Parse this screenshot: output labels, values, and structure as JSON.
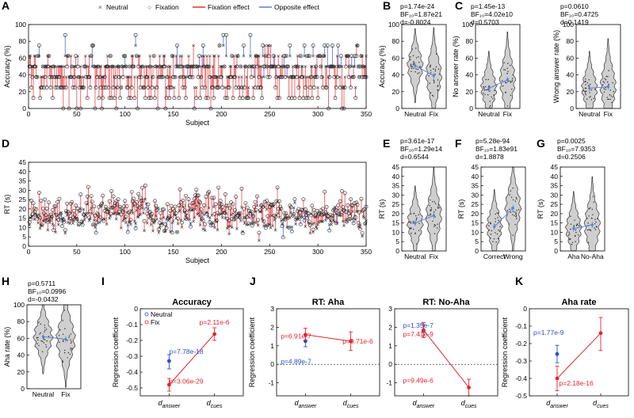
{
  "colors": {
    "neutral": "#555555",
    "fix": "#e8302f",
    "fix_line": "#ef5a5f",
    "opposite": "#5b7fd6",
    "blue": "#2d4ec9",
    "violin_fill": "#cfcfcf",
    "violin_stroke": "#333333",
    "accent_red": "#e0262f",
    "label_blue": "#2d4ec9"
  },
  "panel_letters": [
    "A",
    "B",
    "C",
    "D",
    "E",
    "F",
    "G",
    "H",
    "I",
    "J",
    "K"
  ],
  "panel_a": {
    "legend": [
      "Neutral",
      "Fixation",
      "Fixation effect",
      "Opposite effect"
    ],
    "legend_markers": [
      "×",
      "○"
    ]
  },
  "stats": {
    "B": [
      "p=1.74e-24",
      "BF₁₀=1.87e21",
      "d=-0.8024"
    ],
    "C1": [
      "p=1.45e-13",
      "BF₁₀=4.02e10",
      "d=0.5703"
    ],
    "C2": [
      "p=0.0610",
      "BF₁₀=0.4725",
      "d=0.1419"
    ],
    "E": [
      "p=3.61e-17",
      "BF₁₀=1.29e14",
      "d=0.6544"
    ],
    "F": [
      "p=5.28e-94",
      "BF₁₀=1.83e91",
      "d=1.8878"
    ],
    "G": [
      "p=0.0025",
      "BF₁₀=7.9353",
      "d=0.2506"
    ],
    "H": [
      "p=0.5711",
      "BF₁₀=0.0996",
      "d=-0.0432"
    ]
  },
  "chart_data": [
    {
      "id": "A",
      "type": "scatter",
      "title": "",
      "xlabel": "Subject",
      "ylabel": "Accuracy (%)",
      "xlim": [
        0,
        350
      ],
      "ylim": [
        0,
        100
      ],
      "xticks": [
        0,
        50,
        100,
        150,
        200,
        250,
        300,
        350
      ],
      "yticks": [
        0,
        20,
        40,
        60,
        80,
        100
      ],
      "n_subjects": 350,
      "series": [
        {
          "name": "Neutral"
        },
        {
          "name": "Fixation"
        },
        {
          "name": "Fixation effect"
        },
        {
          "name": "Opposite effect"
        }
      ]
    },
    {
      "id": "D",
      "type": "scatter",
      "title": "",
      "xlabel": "Subject",
      "ylabel": "RT (s)",
      "xlim": [
        0,
        350
      ],
      "ylim": [
        0,
        45
      ],
      "xticks": [
        0,
        50,
        100,
        150,
        200,
        250,
        300,
        350
      ],
      "yticks": [
        0,
        5,
        10,
        15,
        20,
        25,
        30,
        35,
        40,
        45
      ],
      "n_subjects": 350,
      "series": [
        {
          "name": "Neutral"
        },
        {
          "name": "Fixation"
        },
        {
          "name": "Fixation effect"
        },
        {
          "name": "Opposite effect"
        }
      ]
    },
    {
      "id": "B",
      "type": "violin",
      "ylabel": "Accuracy (%)",
      "ylim": [
        0,
        100
      ],
      "yticks": [
        0,
        20,
        40,
        60,
        80,
        100
      ],
      "categories": [
        "Neutral",
        "Fix"
      ],
      "means": [
        51,
        39
      ]
    },
    {
      "id": "C1",
      "type": "violin",
      "ylabel": "No answer rate (%)",
      "ylim": [
        0,
        100
      ],
      "yticks": [
        0,
        20,
        40,
        60,
        80,
        100
      ],
      "categories": [
        "Neutral",
        "Fix"
      ],
      "means": [
        24,
        34
      ]
    },
    {
      "id": "C2",
      "type": "violin",
      "ylabel": "Wrong answer rate (%)",
      "ylim": [
        0,
        100
      ],
      "yticks": [
        0,
        20,
        40,
        60,
        80,
        100
      ],
      "categories": [
        "Neutral",
        "Fix"
      ],
      "means": [
        24,
        26
      ]
    },
    {
      "id": "E",
      "type": "violin",
      "ylabel": "RT (s)",
      "ylim": [
        0,
        45
      ],
      "yticks": [
        0,
        5,
        10,
        15,
        20,
        25,
        30,
        35,
        40,
        45
      ],
      "categories": [
        "Neutral",
        "Fix"
      ],
      "means": [
        15,
        19
      ]
    },
    {
      "id": "F",
      "type": "violin",
      "ylabel": "RT (s)",
      "ylim": [
        0,
        45
      ],
      "yticks": [
        0,
        5,
        10,
        15,
        20,
        25,
        30,
        35,
        40,
        45
      ],
      "categories": [
        "Correct",
        "Wrong"
      ],
      "means": [
        13,
        23
      ]
    },
    {
      "id": "G",
      "type": "violin",
      "ylabel": "RT (s)",
      "ylim": [
        0,
        45
      ],
      "yticks": [
        0,
        5,
        10,
        15,
        20,
        25,
        30,
        35,
        40,
        45
      ],
      "categories": [
        "Aha",
        "No-Aha"
      ],
      "means": [
        12,
        14
      ]
    },
    {
      "id": "H",
      "type": "violin",
      "ylabel": "Aha rate (%)",
      "ylim": [
        0,
        100
      ],
      "yticks": [
        0,
        20,
        40,
        60,
        80,
        100
      ],
      "categories": [
        "Neutral",
        "Fix"
      ],
      "means": [
        62,
        59
      ]
    },
    {
      "id": "I",
      "type": "errorbar",
      "title": "Accuracy",
      "ylabel": "Regression coefficient",
      "ylim": [
        -0.55,
        0
      ],
      "yticks": [
        -0.5,
        -0.4,
        -0.3,
        -0.2,
        -0.1,
        0
      ],
      "x_labels": [
        {
          "main": "d",
          "sub": "answer"
        },
        {
          "main": "d",
          "sub": "cues"
        }
      ],
      "legend": [
        "Neutral",
        "Fix"
      ],
      "series": [
        {
          "name": "Neutral",
          "points": [
            {
              "x": 0,
              "y": -0.33,
              "lo": -0.38,
              "hi": -0.29
            }
          ]
        },
        {
          "name": "Fix",
          "points": [
            {
              "x": 0,
              "y": -0.48,
              "lo": -0.52,
              "hi": -0.44
            },
            {
              "x": 1,
              "y": -0.16,
              "lo": -0.2,
              "hi": -0.12
            }
          ]
        }
      ],
      "annotations": [
        {
          "text": "p=2.11e-6",
          "color": "fix"
        },
        {
          "text": "p=7.78e-18",
          "color": "neutral"
        },
        {
          "text": "p=3.06e-29",
          "color": "fix"
        }
      ]
    },
    {
      "id": "J1",
      "type": "errorbar",
      "title": "RT: Aha",
      "ylabel": "Regression coefficient",
      "ylim": [
        -1.7,
        3
      ],
      "yticks": [
        -1,
        0,
        1,
        2,
        3
      ],
      "x_labels": [
        {
          "main": "d",
          "sub": "answer"
        },
        {
          "main": "d",
          "sub": "cues"
        }
      ],
      "series": [
        {
          "name": "Neutral",
          "points": [
            {
              "x": 0,
              "y": 1.25,
              "lo": 0.95,
              "hi": 1.6
            }
          ]
        },
        {
          "name": "Fix",
          "points": [
            {
              "x": 0,
              "y": 1.6,
              "lo": 1.3,
              "hi": 1.95
            },
            {
              "x": 1,
              "y": 1.25,
              "lo": 0.75,
              "hi": 1.75
            }
          ]
        }
      ],
      "annotations": [
        {
          "text": "p=6.91e-7",
          "color": "fix"
        },
        {
          "text": "p=3.71e-6",
          "color": "fix"
        },
        {
          "text": "p=4.89e-7",
          "color": "neutral"
        }
      ]
    },
    {
      "id": "J2",
      "type": "errorbar",
      "title": "RT: No-Aha",
      "ylabel": "",
      "ylim": [
        -1.7,
        3
      ],
      "yticks": [
        -1,
        0,
        1,
        2,
        3
      ],
      "x_labels": [
        {
          "main": "d",
          "sub": "answer"
        },
        {
          "main": "d",
          "sub": "cues"
        }
      ],
      "series": [
        {
          "name": "Neutral",
          "points": [
            {
              "x": 0,
              "y": 1.8,
              "lo": 1.45,
              "hi": 2.15
            }
          ]
        },
        {
          "name": "Fix",
          "points": [
            {
              "x": 0,
              "y": 1.85,
              "lo": 1.45,
              "hi": 2.25
            },
            {
              "x": 1,
              "y": -1.25,
              "lo": -1.7,
              "hi": -0.8
            }
          ]
        }
      ],
      "annotations": [
        {
          "text": "p=1.35e-7",
          "color": "neutral"
        },
        {
          "text": "p=7.41e-9",
          "color": "fix"
        },
        {
          "text": "p=9.49e-6",
          "color": "fix"
        }
      ]
    },
    {
      "id": "K",
      "type": "errorbar",
      "title": "Aha rate",
      "ylabel": "Regression coefficient",
      "ylim": [
        -0.5,
        0
      ],
      "yticks": [
        -0.5,
        -0.4,
        -0.3,
        -0.2,
        -0.1,
        0
      ],
      "x_labels": [
        {
          "main": "d",
          "sub": "answer"
        },
        {
          "main": "d",
          "sub": "cues"
        }
      ],
      "series": [
        {
          "name": "Neutral",
          "points": [
            {
              "x": 0,
              "y": -0.26,
              "lo": -0.31,
              "hi": -0.21
            }
          ]
        },
        {
          "name": "Fix",
          "points": [
            {
              "x": 0,
              "y": -0.4,
              "lo": -0.47,
              "hi": -0.33
            },
            {
              "x": 1,
              "y": -0.14,
              "lo": -0.24,
              "hi": -0.05
            }
          ]
        }
      ],
      "annotations": [
        {
          "text": "p=1.77e-9",
          "color": "neutral"
        },
        {
          "text": "p=2.18e-16",
          "color": "fix"
        }
      ]
    }
  ]
}
